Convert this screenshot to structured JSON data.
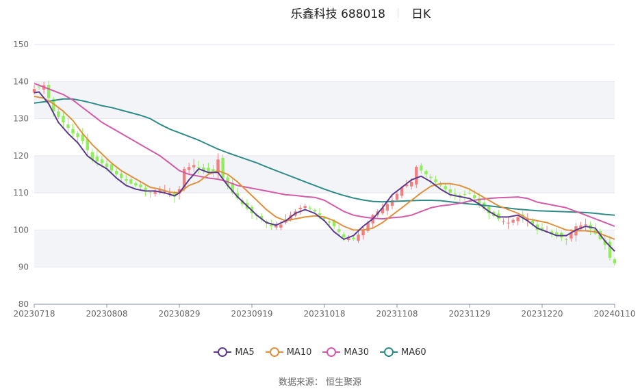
{
  "title": {
    "left": "乐鑫科技 688018",
    "right": "日K"
  },
  "source": "数据来源： 恒生聚源",
  "colors": {
    "up": "#f08080",
    "down": "#90ee5a",
    "MA5": "#5b3a8e",
    "MA10": "#e0903c",
    "MA30": "#d45aa8",
    "MA60": "#2e8b87",
    "grid": "#e6e6ec",
    "band": "#f3f4f8",
    "axis": "#8a8fa8"
  },
  "chart_data": {
    "type": "candlestick",
    "ylim": [
      80,
      150
    ],
    "yticks": [
      80,
      90,
      100,
      110,
      120,
      130,
      140,
      150
    ],
    "xtick_labels": [
      "20230718",
      "20230808",
      "20230829",
      "20230919",
      "20231018",
      "20231108",
      "20231129",
      "20231220",
      "20240110"
    ],
    "xtick_index": [
      0,
      15,
      30,
      45,
      60,
      75,
      90,
      105,
      120
    ],
    "n": 121,
    "legend": [
      "MA5",
      "MA10",
      "MA30",
      "MA60"
    ],
    "close_anchors": [
      [
        0,
        138
      ],
      [
        2,
        139
      ],
      [
        4,
        132
      ],
      [
        6,
        129
      ],
      [
        8,
        126
      ],
      [
        10,
        124
      ],
      [
        12,
        119
      ],
      [
        14,
        118
      ],
      [
        16,
        116
      ],
      [
        18,
        114
      ],
      [
        20,
        112.5
      ],
      [
        22,
        111.5
      ],
      [
        24,
        110
      ],
      [
        26,
        111
      ],
      [
        28,
        110
      ],
      [
        29,
        109
      ],
      [
        30,
        111
      ],
      [
        31,
        116.5
      ],
      [
        33,
        117.5
      ],
      [
        35,
        116
      ],
      [
        37,
        115.5
      ],
      [
        38,
        119
      ],
      [
        39,
        114
      ],
      [
        41,
        110
      ],
      [
        43,
        107
      ],
      [
        45,
        104.5
      ],
      [
        47,
        103
      ],
      [
        49,
        101
      ],
      [
        51,
        101.5
      ],
      [
        53,
        104
      ],
      [
        55,
        106
      ],
      [
        56,
        106.5
      ],
      [
        58,
        105
      ],
      [
        60,
        103
      ],
      [
        62,
        101
      ],
      [
        64,
        98
      ],
      [
        66,
        97.5
      ],
      [
        68,
        100
      ],
      [
        70,
        104
      ],
      [
        72,
        106
      ],
      [
        74,
        108
      ],
      [
        76,
        111.5
      ],
      [
        78,
        113
      ],
      [
        79,
        117
      ],
      [
        81,
        115
      ],
      [
        83,
        113
      ],
      [
        84,
        112
      ],
      [
        86,
        110
      ],
      [
        88,
        109
      ],
      [
        90,
        110
      ],
      [
        92,
        107
      ],
      [
        94,
        104.5
      ],
      [
        96,
        103
      ],
      [
        98,
        102
      ],
      [
        100,
        103.5
      ],
      [
        102,
        103
      ],
      [
        104,
        100
      ],
      [
        106,
        99.5
      ],
      [
        108,
        98.5
      ],
      [
        110,
        97.5
      ],
      [
        112,
        101
      ],
      [
        114,
        101.5
      ],
      [
        116,
        99
      ],
      [
        118,
        96
      ],
      [
        119,
        92.5
      ],
      [
        120,
        91
      ]
    ],
    "ma": {
      "MA5": [
        [
          0,
          137
        ],
        [
          1,
          137.2
        ],
        [
          3,
          134
        ],
        [
          5,
          129
        ],
        [
          7,
          126
        ],
        [
          9,
          123.5
        ],
        [
          11,
          120
        ],
        [
          13,
          118
        ],
        [
          15,
          116.5
        ],
        [
          17,
          114
        ],
        [
          19,
          112
        ],
        [
          21,
          111
        ],
        [
          23,
          110.5
        ],
        [
          25,
          110.5
        ],
        [
          27,
          110
        ],
        [
          29,
          109.2
        ],
        [
          30,
          110
        ],
        [
          32,
          113.5
        ],
        [
          34,
          116.5
        ],
        [
          36,
          115.5
        ],
        [
          38,
          115.5
        ],
        [
          40,
          112
        ],
        [
          42,
          109
        ],
        [
          44,
          106.5
        ],
        [
          46,
          104
        ],
        [
          48,
          102
        ],
        [
          50,
          101.3
        ],
        [
          52,
          102.5
        ],
        [
          54,
          104.5
        ],
        [
          56,
          105.5
        ],
        [
          58,
          104.5
        ],
        [
          60,
          102.5
        ],
        [
          62,
          99.5
        ],
        [
          64,
          97.5
        ],
        [
          66,
          98.5
        ],
        [
          68,
          101
        ],
        [
          70,
          103
        ],
        [
          72,
          106
        ],
        [
          74,
          109.5
        ],
        [
          76,
          111.5
        ],
        [
          78,
          113.5
        ],
        [
          80,
          114.5
        ],
        [
          82,
          113
        ],
        [
          84,
          111
        ],
        [
          86,
          109.5
        ],
        [
          88,
          109
        ],
        [
          90,
          108.5
        ],
        [
          92,
          107
        ],
        [
          94,
          105
        ],
        [
          96,
          103.5
        ],
        [
          98,
          103.5
        ],
        [
          100,
          104
        ],
        [
          102,
          102.5
        ],
        [
          104,
          100.5
        ],
        [
          106,
          99.5
        ],
        [
          108,
          98.5
        ],
        [
          110,
          98.5
        ],
        [
          112,
          100
        ],
        [
          114,
          101
        ],
        [
          116,
          100.5
        ],
        [
          118,
          97
        ],
        [
          120,
          94.3
        ]
      ],
      "MA10": [
        [
          0,
          136
        ],
        [
          2,
          135.5
        ],
        [
          4,
          134
        ],
        [
          6,
          132
        ],
        [
          8,
          129.5
        ],
        [
          10,
          126
        ],
        [
          12,
          123
        ],
        [
          14,
          120.5
        ],
        [
          16,
          118
        ],
        [
          18,
          116
        ],
        [
          20,
          114.5
        ],
        [
          22,
          113
        ],
        [
          24,
          111.5
        ],
        [
          26,
          111
        ],
        [
          28,
          110.2
        ],
        [
          30,
          110
        ],
        [
          32,
          112
        ],
        [
          34,
          113
        ],
        [
          36,
          115
        ],
        [
          38,
          116
        ],
        [
          40,
          115
        ],
        [
          42,
          113
        ],
        [
          44,
          110.5
        ],
        [
          46,
          108
        ],
        [
          48,
          105.5
        ],
        [
          50,
          103.5
        ],
        [
          52,
          102.5
        ],
        [
          54,
          103
        ],
        [
          56,
          103.5
        ],
        [
          58,
          103.8
        ],
        [
          60,
          103.5
        ],
        [
          62,
          102.5
        ],
        [
          64,
          101
        ],
        [
          66,
          100
        ],
        [
          68,
          100
        ],
        [
          70,
          100.5
        ],
        [
          72,
          102
        ],
        [
          74,
          104
        ],
        [
          76,
          106
        ],
        [
          78,
          108
        ],
        [
          80,
          110
        ],
        [
          82,
          111.8
        ],
        [
          84,
          112.5
        ],
        [
          86,
          112.5
        ],
        [
          88,
          112
        ],
        [
          90,
          111
        ],
        [
          92,
          109.5
        ],
        [
          94,
          108
        ],
        [
          96,
          106.5
        ],
        [
          98,
          105.5
        ],
        [
          100,
          104.5
        ],
        [
          102,
          103
        ],
        [
          104,
          102.5
        ],
        [
          106,
          102
        ],
        [
          108,
          101
        ],
        [
          110,
          100
        ],
        [
          112,
          99.8
        ],
        [
          114,
          99.8
        ],
        [
          116,
          99.5
        ],
        [
          118,
          98.5
        ],
        [
          120,
          97.5
        ]
      ],
      "MA30": [
        [
          0,
          139.5
        ],
        [
          3,
          138
        ],
        [
          6,
          136.5
        ],
        [
          8,
          135
        ],
        [
          10,
          133
        ],
        [
          12,
          131
        ],
        [
          14,
          129
        ],
        [
          16,
          127.5
        ],
        [
          18,
          126
        ],
        [
          20,
          124.5
        ],
        [
          22,
          123
        ],
        [
          24,
          121.5
        ],
        [
          26,
          120
        ],
        [
          28,
          118
        ],
        [
          30,
          116
        ],
        [
          32,
          115
        ],
        [
          34,
          114.5
        ],
        [
          36,
          114
        ],
        [
          38,
          113.7
        ],
        [
          40,
          113
        ],
        [
          42,
          112
        ],
        [
          44,
          111.5
        ],
        [
          46,
          111
        ],
        [
          48,
          110.5
        ],
        [
          50,
          110
        ],
        [
          52,
          109.5
        ],
        [
          54,
          109.3
        ],
        [
          56,
          109
        ],
        [
          58,
          108.8
        ],
        [
          60,
          108
        ],
        [
          62,
          106.5
        ],
        [
          64,
          105
        ],
        [
          66,
          104
        ],
        [
          68,
          103.5
        ],
        [
          70,
          103.2
        ],
        [
          72,
          103
        ],
        [
          74,
          103.3
        ],
        [
          76,
          103.5
        ],
        [
          78,
          104
        ],
        [
          80,
          105
        ],
        [
          82,
          106
        ],
        [
          84,
          106.5
        ],
        [
          86,
          106.8
        ],
        [
          88,
          107.2
        ],
        [
          90,
          107.8
        ],
        [
          92,
          108.2
        ],
        [
          94,
          108.5
        ],
        [
          96,
          108.7
        ],
        [
          98,
          108.8
        ],
        [
          100,
          108.9
        ],
        [
          102,
          108.5
        ],
        [
          104,
          107.5
        ],
        [
          106,
          107
        ],
        [
          108,
          106.5
        ],
        [
          110,
          106
        ],
        [
          112,
          105
        ],
        [
          114,
          104
        ],
        [
          116,
          103
        ],
        [
          118,
          102
        ],
        [
          120,
          101
        ]
      ],
      "MA60": [
        [
          0,
          134.2
        ],
        [
          3,
          134.7
        ],
        [
          6,
          135.3
        ],
        [
          8,
          135.3
        ],
        [
          10,
          134.8
        ],
        [
          12,
          134.2
        ],
        [
          14,
          133.5
        ],
        [
          16,
          133
        ],
        [
          18,
          132.3
        ],
        [
          20,
          131.6
        ],
        [
          22,
          130.9
        ],
        [
          24,
          130
        ],
        [
          26,
          128.5
        ],
        [
          28,
          127.2
        ],
        [
          30,
          126.2
        ],
        [
          32,
          125.2
        ],
        [
          34,
          124.2
        ],
        [
          36,
          123
        ],
        [
          38,
          121.8
        ],
        [
          40,
          120.8
        ],
        [
          42,
          119.9
        ],
        [
          44,
          119
        ],
        [
          46,
          118.1
        ],
        [
          48,
          117
        ],
        [
          50,
          116
        ],
        [
          52,
          115
        ],
        [
          54,
          114
        ],
        [
          56,
          113
        ],
        [
          58,
          112
        ],
        [
          60,
          111
        ],
        [
          62,
          110.1
        ],
        [
          64,
          109.3
        ],
        [
          66,
          108.6
        ],
        [
          68,
          108.1
        ],
        [
          70,
          107.7
        ],
        [
          72,
          107.6
        ],
        [
          74,
          107.7
        ],
        [
          76,
          107.8
        ],
        [
          78,
          107.9
        ],
        [
          80,
          108
        ],
        [
          82,
          108
        ],
        [
          84,
          107.9
        ],
        [
          86,
          107.6
        ],
        [
          88,
          107.3
        ],
        [
          90,
          107
        ],
        [
          92,
          106.8
        ],
        [
          94,
          106.5
        ],
        [
          96,
          106.2
        ],
        [
          98,
          105.9
        ],
        [
          100,
          105.6
        ],
        [
          102,
          105.4
        ],
        [
          104,
          105.2
        ],
        [
          106,
          105.1
        ],
        [
          108,
          105
        ],
        [
          110,
          104.9
        ],
        [
          112,
          104.8
        ],
        [
          114,
          104.7
        ],
        [
          116,
          104.5
        ],
        [
          118,
          104.2
        ],
        [
          120,
          104
        ]
      ]
    }
  }
}
